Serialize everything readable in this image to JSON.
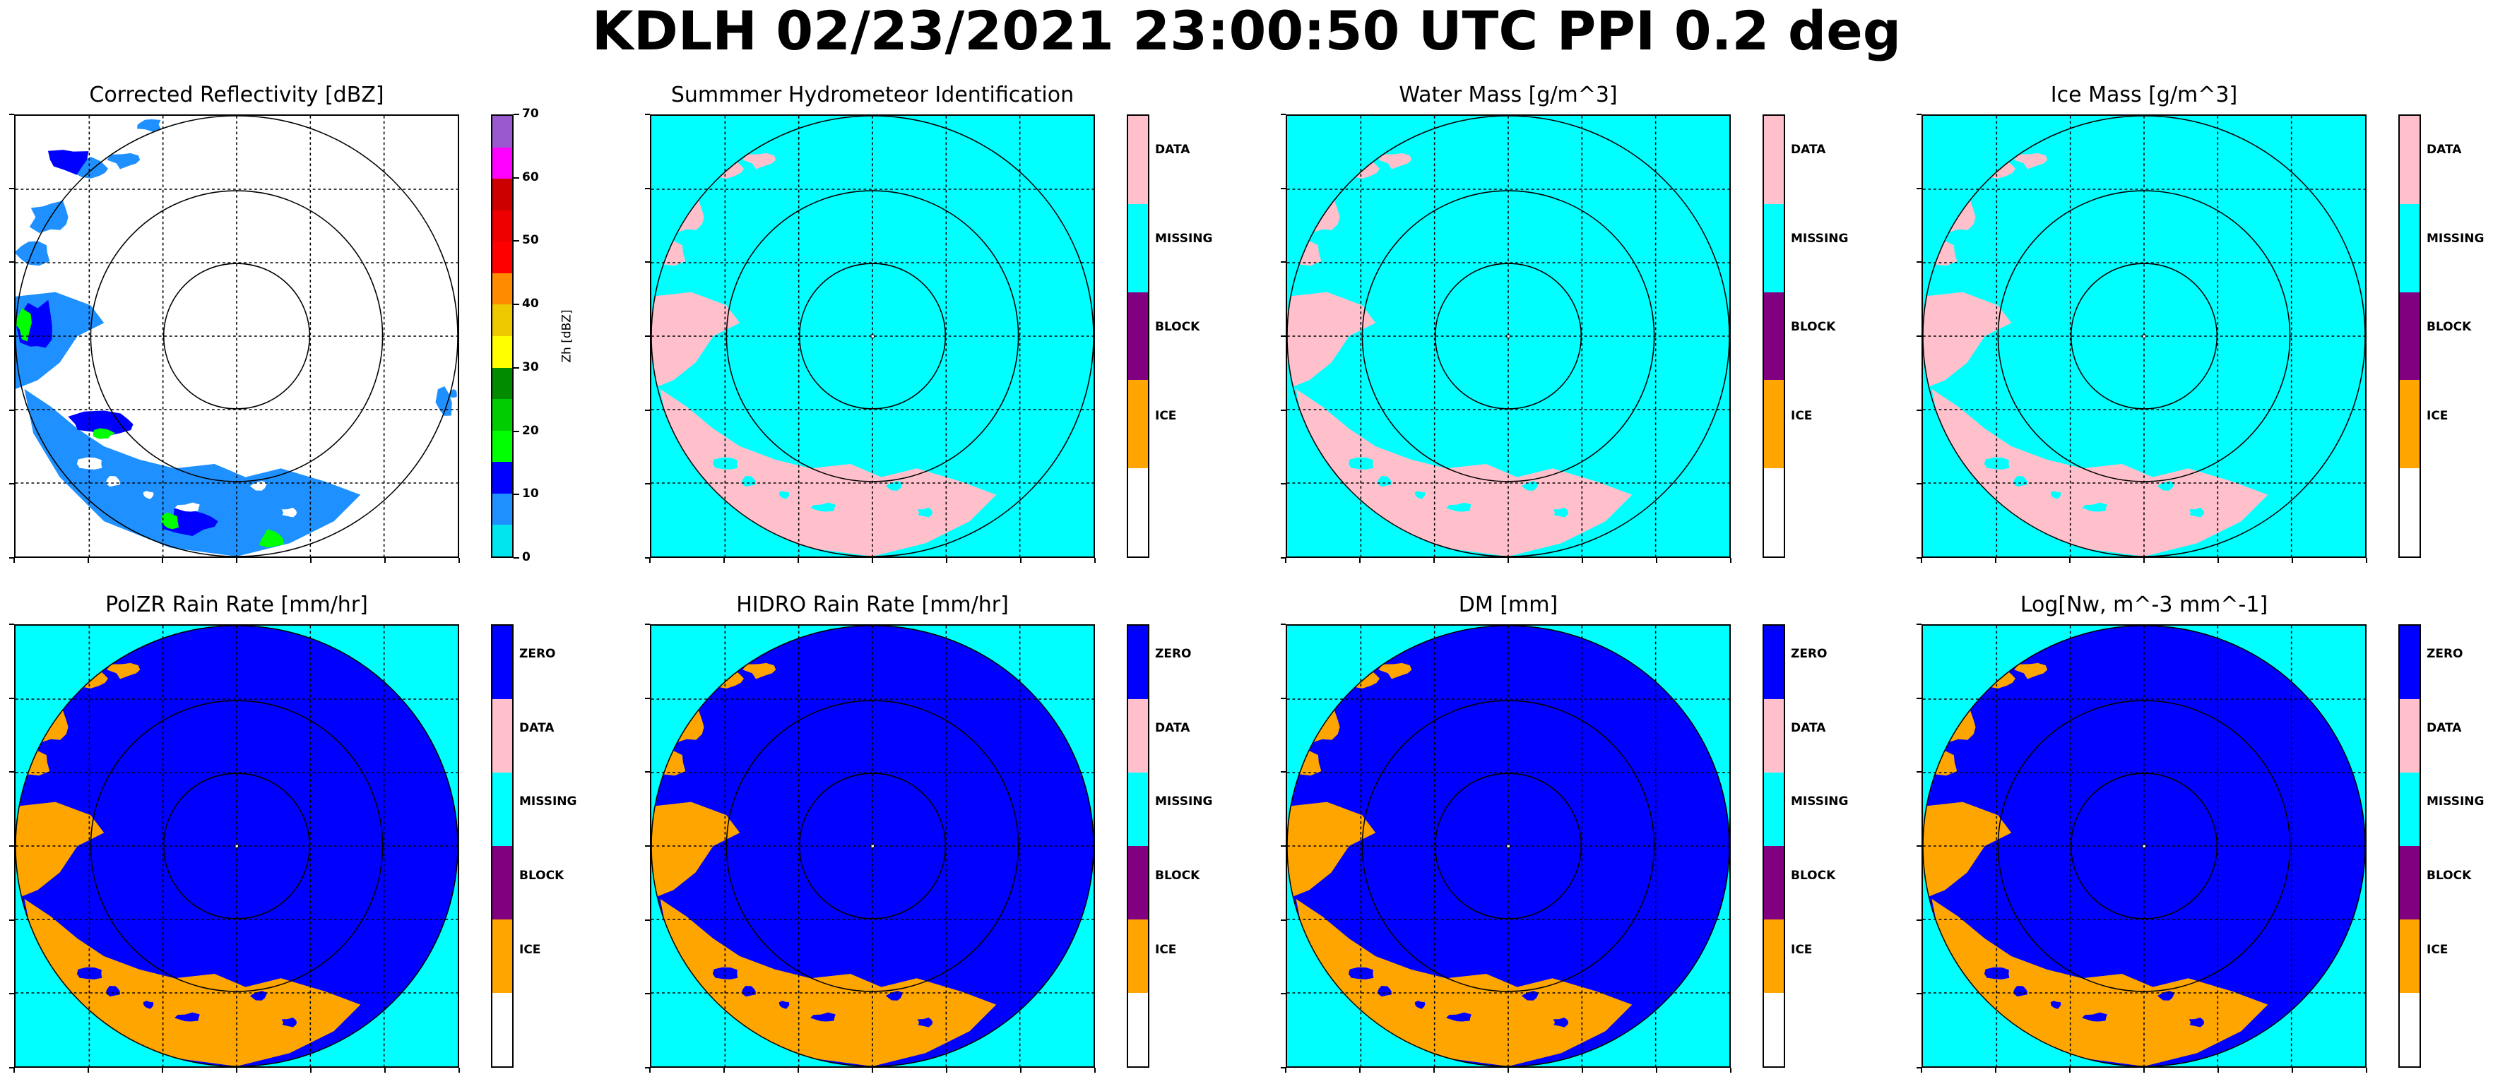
{
  "suptitle": "KDLH 02/23/2021 23:00:50 UTC PPI 0.2 deg",
  "colors": {
    "zero": "#0000ff",
    "data": "#ffc0cb",
    "missing": "#00ffff",
    "block": "#800080",
    "ice": "#ffa500",
    "white": "#ffffff",
    "grid": "#000000"
  },
  "chart_data": [
    {
      "type": "heatmap",
      "title": "Corrected Reflectivity [dBZ]",
      "colorbar": {
        "kind": "continuous",
        "label": "Zh [dBZ]",
        "ticks": [
          "0",
          "10",
          "20",
          "30",
          "40",
          "50",
          "60",
          "70"
        ],
        "range": [
          0,
          70
        ],
        "bins": [
          {
            "from": 0,
            "to": 5,
            "color": "#00e5ee"
          },
          {
            "from": 5,
            "to": 10,
            "color": "#1e90ff"
          },
          {
            "from": 10,
            "to": 15,
            "color": "#0000ff"
          },
          {
            "from": 15,
            "to": 20,
            "color": "#00ff00"
          },
          {
            "from": 20,
            "to": 25,
            "color": "#00cd00"
          },
          {
            "from": 25,
            "to": 30,
            "color": "#008b00"
          },
          {
            "from": 30,
            "to": 35,
            "color": "#ffff00"
          },
          {
            "from": 35,
            "to": 40,
            "color": "#eec900"
          },
          {
            "from": 40,
            "to": 45,
            "color": "#ff8c00"
          },
          {
            "from": 45,
            "to": 50,
            "color": "#ff0000"
          },
          {
            "from": 50,
            "to": 55,
            "color": "#ee0000"
          },
          {
            "from": 55,
            "to": 60,
            "color": "#cd0000"
          },
          {
            "from": 60,
            "to": 65,
            "color": "#ff00ff"
          },
          {
            "from": 65,
            "to": 70,
            "color": "#9b59d0"
          }
        ]
      },
      "field": "reflectivity",
      "range_rings": 3,
      "grid": true
    },
    {
      "type": "heatmap",
      "title": "Summmer Hydrometeor Identification",
      "colorbar": {
        "kind": "categorical",
        "categories": [
          "DATA",
          "MISSING",
          "BLOCK",
          "ICE",
          ""
        ],
        "category_colors": [
          "#ffc0cb",
          "#00ffff",
          "#800080",
          "#ffa500",
          "#ffffff"
        ]
      },
      "field": "mask_data",
      "range_rings": 3,
      "grid": true
    },
    {
      "type": "heatmap",
      "title": "Water Mass [g/m^3]",
      "colorbar": {
        "kind": "categorical",
        "categories": [
          "DATA",
          "MISSING",
          "BLOCK",
          "ICE",
          ""
        ],
        "category_colors": [
          "#ffc0cb",
          "#00ffff",
          "#800080",
          "#ffa500",
          "#ffffff"
        ]
      },
      "field": "mask_data",
      "range_rings": 3,
      "grid": true
    },
    {
      "type": "heatmap",
      "title": "Ice Mass [g/m^3]",
      "colorbar": {
        "kind": "categorical",
        "categories": [
          "DATA",
          "MISSING",
          "BLOCK",
          "ICE",
          ""
        ],
        "category_colors": [
          "#ffc0cb",
          "#00ffff",
          "#800080",
          "#ffa500",
          "#ffffff"
        ]
      },
      "field": "mask_data",
      "range_rings": 3,
      "grid": true
    },
    {
      "type": "heatmap",
      "title": "PolZR Rain Rate [mm/hr]",
      "colorbar": {
        "kind": "categorical",
        "categories": [
          "ZERO",
          "DATA",
          "MISSING",
          "BLOCK",
          "ICE",
          ""
        ],
        "category_colors": [
          "#0000ff",
          "#ffc0cb",
          "#00ffff",
          "#800080",
          "#ffa500",
          "#ffffff"
        ]
      },
      "field": "zero_ice",
      "range_rings": 3,
      "grid": true
    },
    {
      "type": "heatmap",
      "title": "HIDRO Rain Rate [mm/hr]",
      "colorbar": {
        "kind": "categorical",
        "categories": [
          "ZERO",
          "DATA",
          "MISSING",
          "BLOCK",
          "ICE",
          ""
        ],
        "category_colors": [
          "#0000ff",
          "#ffc0cb",
          "#00ffff",
          "#800080",
          "#ffa500",
          "#ffffff"
        ]
      },
      "field": "zero_ice",
      "range_rings": 3,
      "grid": true
    },
    {
      "type": "heatmap",
      "title": "DM [mm]",
      "colorbar": {
        "kind": "categorical",
        "categories": [
          "ZERO",
          "DATA",
          "MISSING",
          "BLOCK",
          "ICE",
          ""
        ],
        "category_colors": [
          "#0000ff",
          "#ffc0cb",
          "#00ffff",
          "#800080",
          "#ffa500",
          "#ffffff"
        ]
      },
      "field": "zero_ice",
      "range_rings": 3,
      "grid": true
    },
    {
      "type": "heatmap",
      "title": "Log[Nw, m^-3 mm^-1]",
      "colorbar": {
        "kind": "categorical",
        "categories": [
          "ZERO",
          "DATA",
          "MISSING",
          "BLOCK",
          "ICE",
          ""
        ],
        "category_colors": [
          "#0000ff",
          "#ffc0cb",
          "#00ffff",
          "#800080",
          "#ffa500",
          "#ffffff"
        ]
      },
      "field": "zero_ice",
      "range_rings": 3,
      "grid": true
    }
  ]
}
